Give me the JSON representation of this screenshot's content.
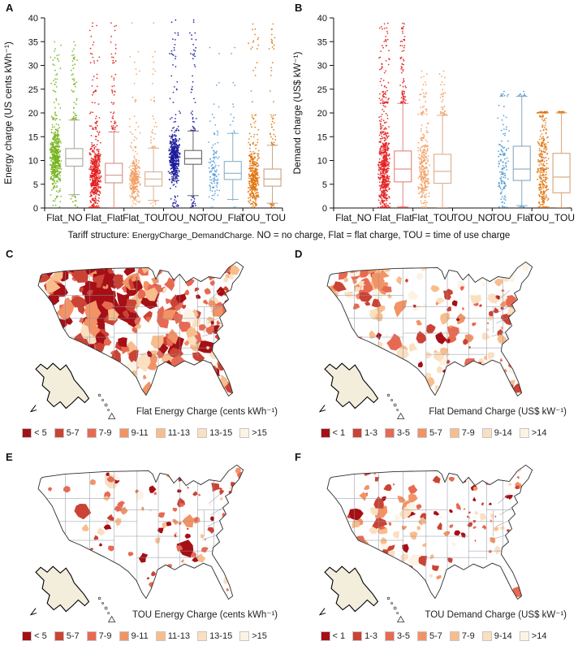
{
  "panel_letters": {
    "A": "A",
    "B": "B",
    "C": "C",
    "D": "D",
    "E": "E",
    "F": "F"
  },
  "caption": {
    "prefix": "Tariff structure: ",
    "code": "EnergyCharge_DemandCharge.",
    "suffix": " NO = no charge, Flat = flat charge, TOU = time of use charge"
  },
  "chart_data": [
    {
      "id": "A",
      "type": "box-strip",
      "ylabel": "Energy charge (US cents kWh⁻¹)",
      "ylim": [
        0,
        40
      ],
      "yticks": [
        0,
        5,
        10,
        15,
        20,
        25,
        30,
        35,
        40
      ],
      "categories": [
        "Flat_NO",
        "Flat_Flat",
        "Flat_TOU",
        "TOU_NO",
        "TOU_Flat",
        "TOU_TOU"
      ],
      "series": [
        {
          "category": "Flat_NO",
          "point_color": "#76b41e",
          "box_color": "#aaa89a",
          "n": 520,
          "box": {
            "lo": 2.8,
            "q1": 8.8,
            "med": 10.4,
            "q3": 12.5,
            "hi": 18.5
          },
          "outlier_max": 37.0
        },
        {
          "category": "Flat_Flat",
          "point_color": "#e31f1f",
          "box_color": "#cf9184",
          "n": 560,
          "box": {
            "lo": 0.1,
            "q1": 5.3,
            "med": 6.9,
            "q3": 9.4,
            "hi": 16.0
          },
          "outlier_max": 39.3
        },
        {
          "category": "Flat_TOU",
          "point_color": "#f2a063",
          "box_color": "#d8b197",
          "n": 300,
          "box": {
            "lo": 1.6,
            "q1": 4.6,
            "med": 6.1,
            "q3": 7.6,
            "hi": 12.6
          },
          "outlier_max": 39.0
        },
        {
          "category": "TOU_NO",
          "point_color": "#1c1c9c",
          "box_color": "#676767",
          "n": 520,
          "box": {
            "lo": 2.6,
            "q1": 9.2,
            "med": 10.4,
            "q3": 12.1,
            "hi": 16.2
          },
          "outlier_max": 39.7
        },
        {
          "category": "TOU_Flat",
          "point_color": "#58a0d9",
          "box_color": "#87b0ca",
          "n": 120,
          "box": {
            "lo": 1.8,
            "q1": 6.0,
            "med": 7.3,
            "q3": 9.8,
            "hi": 15.7
          },
          "outlier_max": 34.8
        },
        {
          "category": "TOU_TOU",
          "point_color": "#e1740e",
          "box_color": "#c9a183",
          "n": 400,
          "box": {
            "lo": 1.0,
            "q1": 4.6,
            "med": 6.1,
            "q3": 8.2,
            "hi": 13.2
          },
          "outlier_max": 39.2
        }
      ]
    },
    {
      "id": "B",
      "type": "box-strip",
      "ylabel": "Demand charge (US$ kW⁻¹)",
      "ylim": [
        0,
        40
      ],
      "yticks": [
        0,
        5,
        10,
        15,
        20,
        25,
        30,
        35,
        40
      ],
      "categories": [
        "Flat_NO",
        "Flat_Flat",
        "Flat_TOU",
        "TOU_NO",
        "TOU_Flat",
        "TOU_TOU"
      ],
      "series": [
        {
          "category": "Flat_NO",
          "point_color": "#e31f1f",
          "box_color": "#cf9184",
          "n": 0,
          "box": null,
          "outlier_max": 0
        },
        {
          "category": "Flat_Flat",
          "point_color": "#e31f1f",
          "box_color": "#e2867a",
          "n": 620,
          "box": {
            "lo": 0.2,
            "q1": 5.5,
            "med": 8.2,
            "q3": 12.0,
            "hi": 22.0
          },
          "outlier_max": 39.3
        },
        {
          "category": "Flat_TOU",
          "point_color": "#f2a063",
          "box_color": "#ddab8c",
          "n": 300,
          "box": {
            "lo": 0.1,
            "q1": 5.2,
            "med": 7.7,
            "q3": 11.3,
            "hi": 19.5
          },
          "outlier_max": 29.5
        },
        {
          "category": "TOU_NO",
          "point_color": "#1c1c9c",
          "box_color": "#676767",
          "n": 0,
          "box": null,
          "outlier_max": 0
        },
        {
          "category": "TOU_Flat",
          "point_color": "#4a97d2",
          "box_color": "#8aa8bf",
          "n": 130,
          "box": {
            "lo": 0.5,
            "q1": 5.8,
            "med": 8.2,
            "q3": 13.0,
            "hi": 23.5
          },
          "outlier_max": 24.8
        },
        {
          "category": "TOU_TOU",
          "point_color": "#e1740e",
          "box_color": "#d8a377",
          "n": 330,
          "box": {
            "lo": 0.1,
            "q1": 3.2,
            "med": 6.5,
            "q3": 11.5,
            "hi": 20.0
          },
          "outlier_max": 20.3
        }
      ]
    },
    {
      "id": "C",
      "type": "choropleth_map",
      "title": "Flat Energy Charge (cents kWh⁻¹)",
      "legend_bins": [
        "< 5",
        "5-7",
        "7-9",
        "9-11",
        "11-13",
        "13-15",
        ">15"
      ],
      "palette": [
        "#a50f15",
        "#ca4335",
        "#e86952",
        "#f29365",
        "#f8bd8c",
        "#fbdfc1",
        "#fdf3e4"
      ]
    },
    {
      "id": "D",
      "type": "choropleth_map",
      "title": "Flat Demand Charge (US$ kW⁻¹)",
      "legend_bins": [
        "< 1",
        "1-3",
        "3-5",
        "5-7",
        "7-9",
        "9-14",
        ">14"
      ],
      "palette": [
        "#a50f15",
        "#ca4335",
        "#e86952",
        "#f29365",
        "#f8bd8c",
        "#fbdfc1",
        "#fdf3e4"
      ]
    },
    {
      "id": "E",
      "type": "choropleth_map",
      "title": "TOU Energy Charge (cents kWh⁻¹)",
      "legend_bins": [
        "< 5",
        "5-7",
        "7-9",
        "9-11",
        "11-13",
        "13-15",
        ">15"
      ],
      "palette": [
        "#a50f15",
        "#ca4335",
        "#e86952",
        "#f29365",
        "#f8bd8c",
        "#fbdfc1",
        "#fdf3e4"
      ]
    },
    {
      "id": "F",
      "type": "choropleth_map",
      "title": "TOU Demand Charge (US$ kW⁻¹)",
      "legend_bins": [
        "< 1",
        "1-3",
        "3-5",
        "5-7",
        "7-9",
        "9-14",
        ">14"
      ],
      "palette": [
        "#a50f15",
        "#ca4335",
        "#e86952",
        "#f29365",
        "#f8bd8c",
        "#fbdfc1",
        "#fdf3e4"
      ]
    }
  ]
}
